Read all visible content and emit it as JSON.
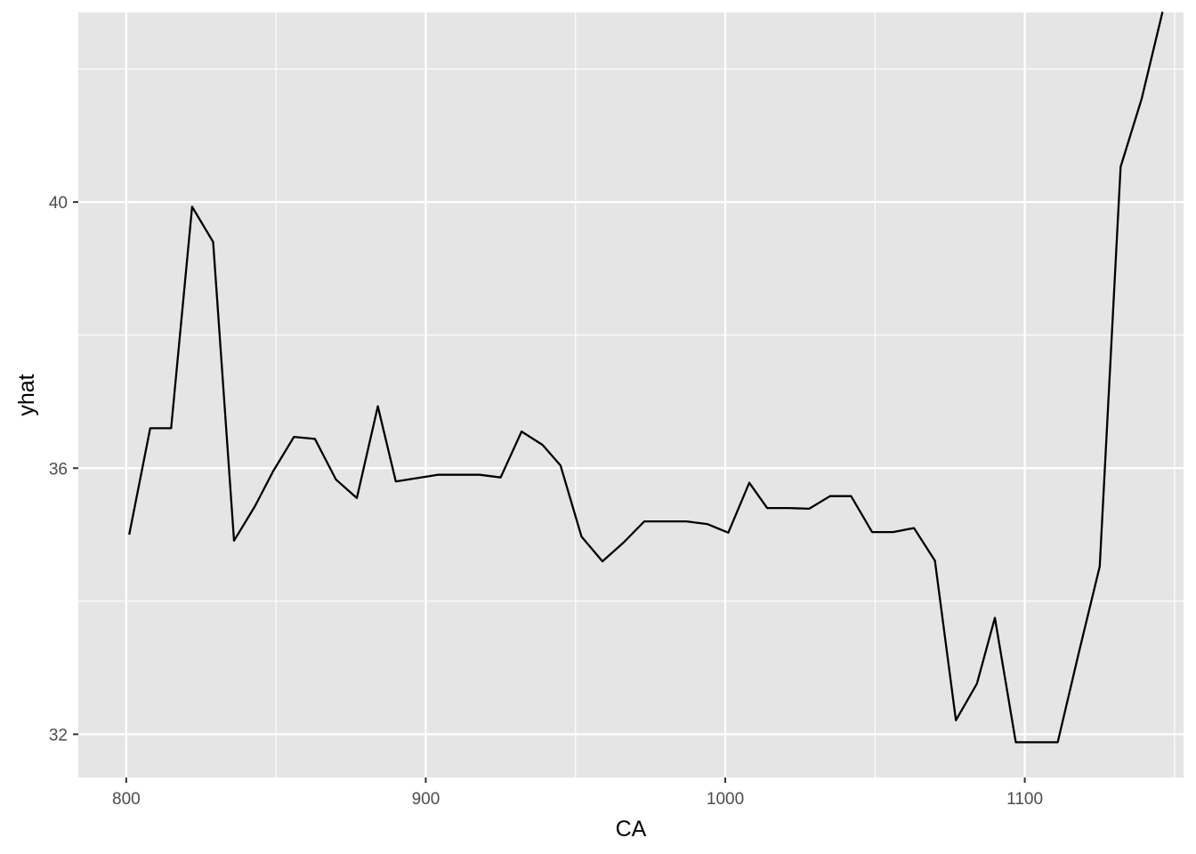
{
  "chart_data": {
    "type": "line",
    "title": "",
    "xlabel": "CA",
    "ylabel": "yhat",
    "xlim": [
      784,
      1153
    ],
    "ylim": [
      31.35,
      42.85
    ],
    "x_ticks": [
      800,
      900,
      1000,
      1100
    ],
    "x_tick_labels": [
      "800",
      "900",
      "1000",
      "1100"
    ],
    "y_ticks": [
      32,
      36,
      40
    ],
    "y_tick_labels": [
      "32",
      "36",
      "40"
    ],
    "grid": true,
    "legend": "none",
    "colors": {
      "panel": "#e5e5e5",
      "grid": "#ffffff",
      "line": "#000000"
    },
    "series": [
      {
        "x": [
          801,
          808,
          815,
          822,
          829,
          836,
          843,
          849,
          856,
          863,
          870,
          877,
          884,
          890,
          897,
          904,
          911,
          918,
          925,
          932,
          939,
          945,
          952,
          959,
          966,
          973,
          980,
          987,
          994,
          1001,
          1008,
          1014,
          1021,
          1028,
          1035,
          1042,
          1049,
          1056,
          1063,
          1070,
          1077,
          1084,
          1090,
          1097,
          1104,
          1111,
          1118,
          1125,
          1132,
          1139,
          1146
        ],
        "y": [
          35.0,
          36.6,
          36.6,
          39.93,
          39.4,
          34.91,
          35.43,
          35.95,
          36.47,
          36.44,
          35.83,
          35.55,
          36.93,
          35.8,
          35.85,
          35.9,
          35.9,
          35.9,
          35.86,
          36.55,
          36.35,
          36.04,
          34.97,
          34.6,
          34.88,
          35.2,
          35.2,
          35.2,
          35.16,
          35.03,
          35.78,
          35.4,
          35.4,
          35.39,
          35.58,
          35.58,
          35.04,
          35.04,
          35.1,
          34.61,
          32.21,
          32.76,
          33.75,
          31.88,
          31.88,
          31.88,
          33.22,
          34.52,
          40.53,
          41.55,
          42.86
        ]
      }
    ]
  }
}
